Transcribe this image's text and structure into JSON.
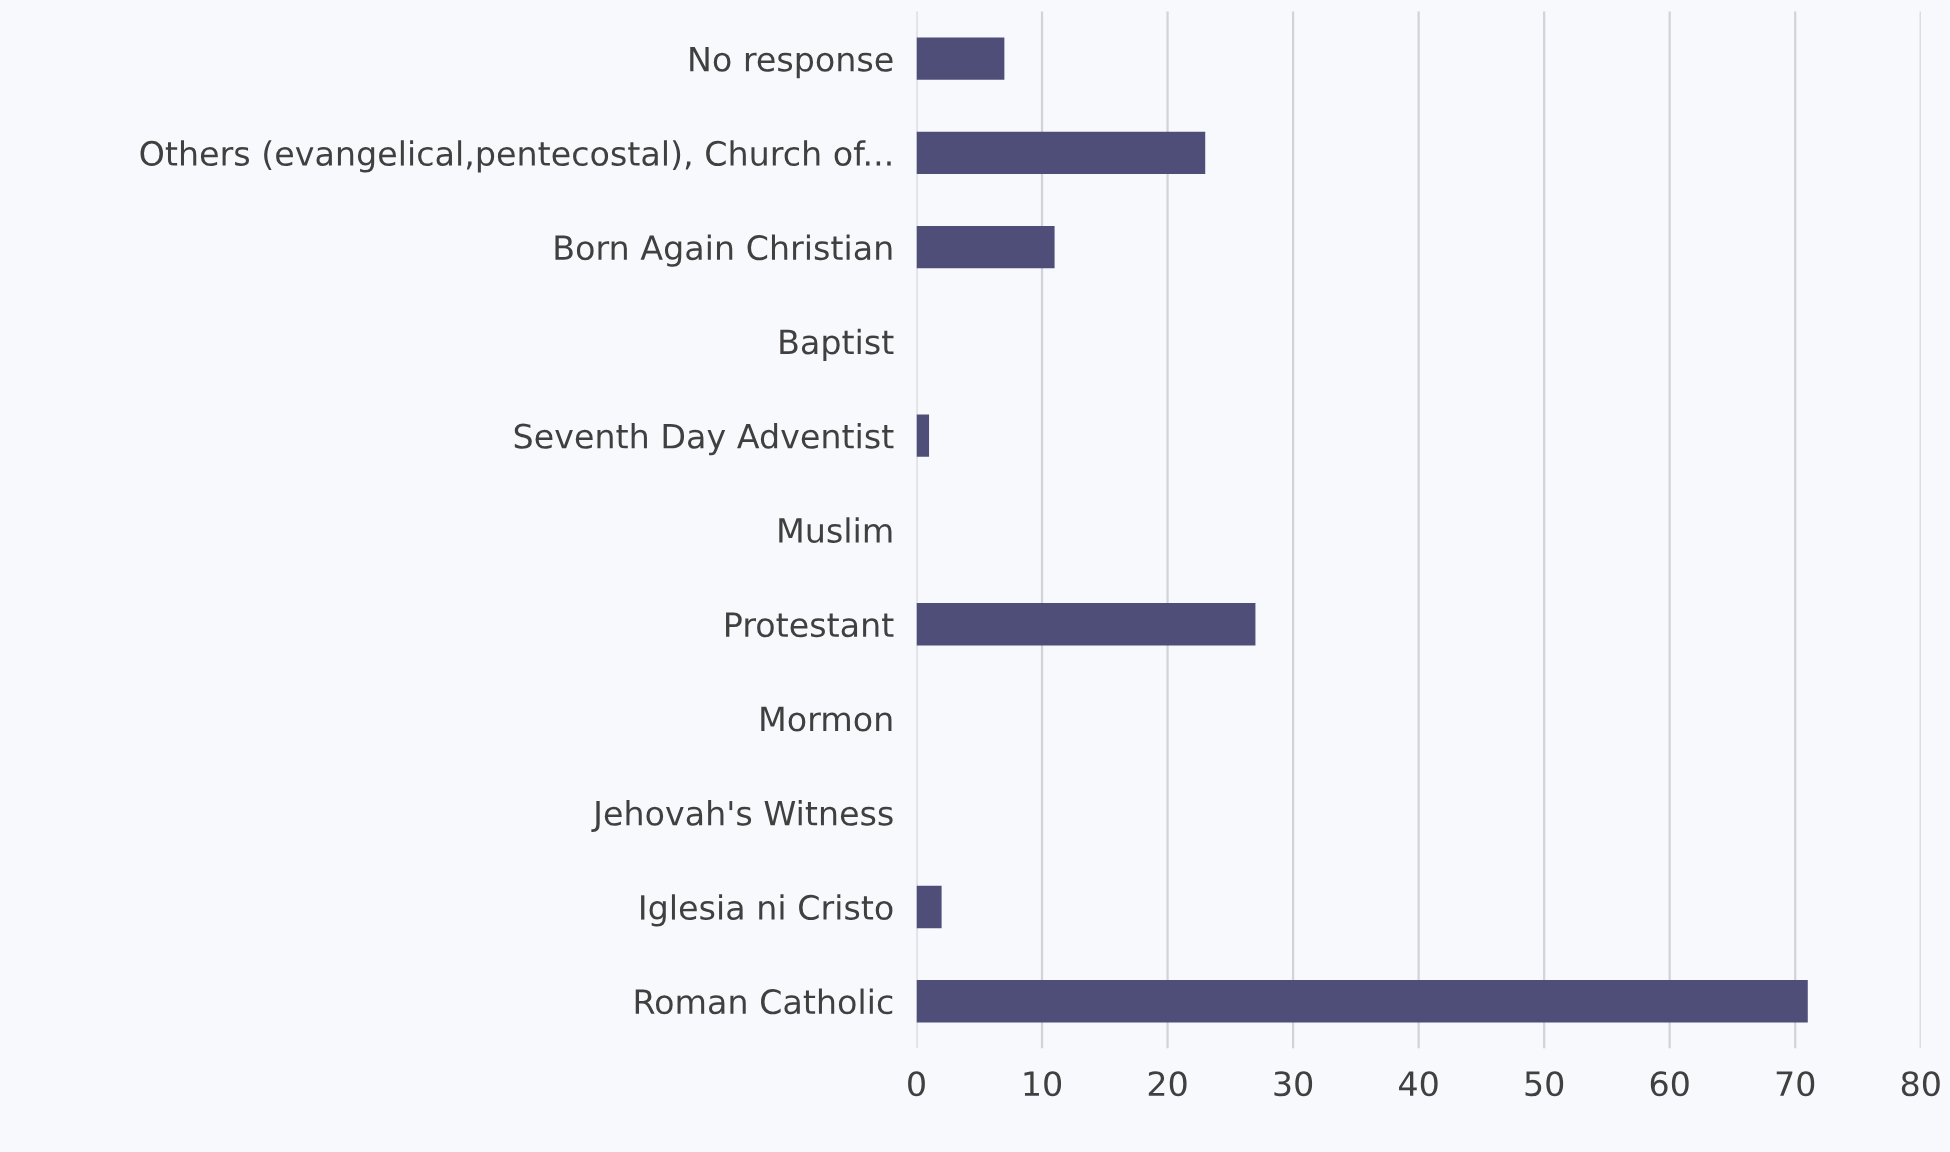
{
  "chart_data": {
    "type": "bar",
    "orientation": "horizontal",
    "categories": [
      "No response",
      "Others (evangelical,pentecostal), Church of...",
      "Born Again Christian",
      "Baptist",
      "Seventh Day Adventist",
      "Muslim",
      "Protestant",
      "Mormon",
      "Jehovah's Witness",
      "Iglesia ni Cristo",
      "Roman Catholic"
    ],
    "values": [
      7,
      23,
      11,
      0,
      1,
      0,
      27,
      0,
      0,
      2,
      71
    ],
    "color": "#4f4e78",
    "xlim": [
      0,
      80
    ],
    "xticks": [
      0,
      10,
      20,
      30,
      40,
      50,
      60,
      70,
      80
    ],
    "grid": "x"
  }
}
